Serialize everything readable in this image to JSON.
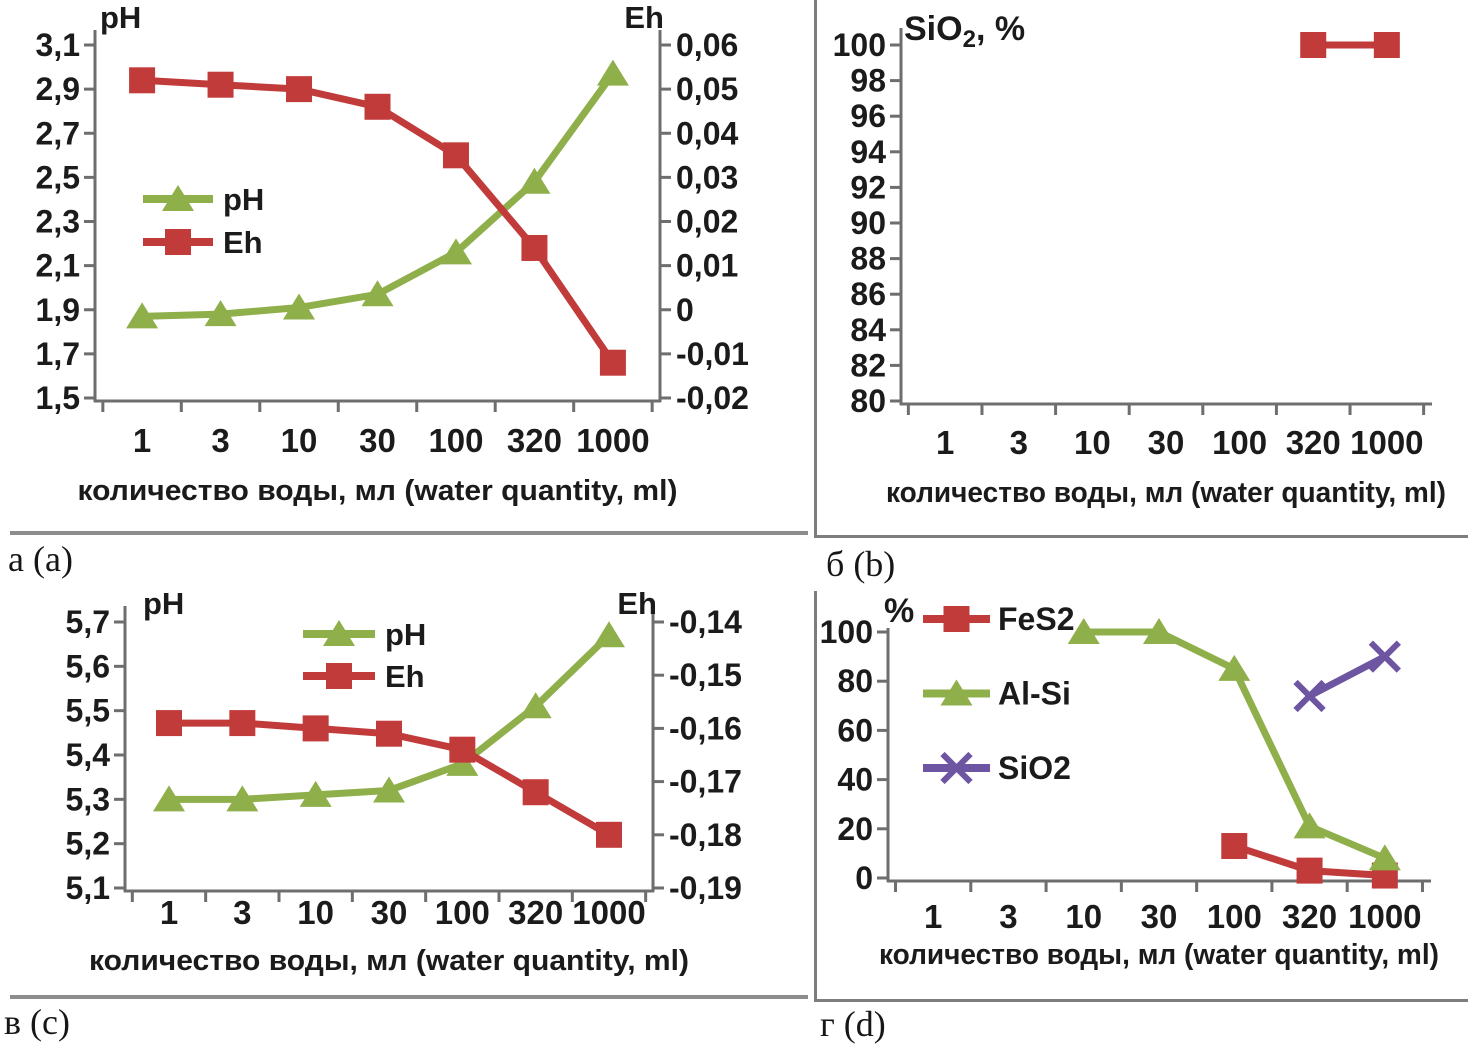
{
  "colors": {
    "green": "#8FAF4B",
    "red": "#C23B3B",
    "purple": "#6D55A1",
    "axis": "#6E6E6E",
    "text": "#1B1B1B",
    "divider": "#8D8D8D"
  },
  "x_axis": {
    "label": "количество воды, мл (water quantity, ml)",
    "categories": [
      "1",
      "3",
      "10",
      "30",
      "100",
      "320",
      "1000"
    ]
  },
  "panels": [
    {
      "id": "a",
      "caption": "а (a)"
    },
    {
      "id": "b",
      "caption": "б (b)"
    },
    {
      "id": "c",
      "caption": "в (c)"
    },
    {
      "id": "d",
      "caption": "г (d)"
    }
  ],
  "chart_data": [
    {
      "panel": "a",
      "type": "line",
      "categories": [
        "1",
        "3",
        "10",
        "30",
        "100",
        "320",
        "1000"
      ],
      "xlabel": "количество воды, мл (water quantity, ml)",
      "grid": false,
      "axes": {
        "left": {
          "title": "pH",
          "min": 1.5,
          "max": 3.1,
          "tick_labels": [
            "3,1",
            "2,9",
            "2,7",
            "2,5",
            "2,3",
            "2,1",
            "1,9",
            "1,7",
            "1,5"
          ]
        },
        "right": {
          "title": "Eh",
          "min": -0.02,
          "max": 0.06,
          "tick_labels": [
            "0,06",
            "0,05",
            "0,04",
            "0,03",
            "0,02",
            "0,01",
            "0",
            "-0,01",
            "-0,02"
          ]
        }
      },
      "series": [
        {
          "name": "pH",
          "axis": "left",
          "color": "green",
          "marker": "triangle",
          "x": [
            "1",
            "3",
            "10",
            "30",
            "100",
            "320",
            "1000"
          ],
          "values": [
            1.87,
            1.88,
            1.91,
            1.97,
            2.16,
            2.48,
            2.97
          ]
        },
        {
          "name": "Eh",
          "axis": "right",
          "color": "red",
          "marker": "square",
          "x": [
            "1",
            "3",
            "10",
            "30",
            "100",
            "320",
            "1000"
          ],
          "values": [
            0.052,
            0.051,
            0.05,
            0.046,
            0.035,
            0.014,
            -0.012
          ]
        }
      ],
      "legend": {
        "position": "inside-left",
        "entries": [
          "pH",
          "Eh"
        ]
      }
    },
    {
      "panel": "b",
      "type": "line",
      "title": {
        "text": "SiO",
        "sub": "2",
        "suffix": ", %"
      },
      "categories": [
        "1",
        "3",
        "10",
        "30",
        "100",
        "320",
        "1000"
      ],
      "xlabel": "количество воды, мл (water quantity, ml)",
      "grid": false,
      "axes": {
        "left": {
          "title": "",
          "min": 80,
          "max": 100,
          "tick_labels": [
            "100",
            "98",
            "96",
            "94",
            "92",
            "90",
            "88",
            "86",
            "84",
            "82",
            "80"
          ]
        }
      },
      "series": [
        {
          "name": "SiO2",
          "axis": "left",
          "color": "red",
          "marker": "square",
          "x": [
            "320",
            "1000"
          ],
          "values": [
            100,
            100
          ]
        }
      ],
      "legend": null
    },
    {
      "panel": "c",
      "type": "line",
      "categories": [
        "1",
        "3",
        "10",
        "30",
        "100",
        "320",
        "1000"
      ],
      "xlabel": "количество воды, мл (water quantity, ml)",
      "grid": false,
      "axes": {
        "left": {
          "title": "pH",
          "min": 5.1,
          "max": 5.7,
          "tick_labels": [
            "5,7",
            "5,6",
            "5,5",
            "5,4",
            "5,3",
            "5,2",
            "5,1"
          ]
        },
        "right": {
          "title": "Eh",
          "min": -0.19,
          "max": -0.14,
          "tick_labels": [
            "-0,14",
            "-0,15",
            "-0,16",
            "-0,17",
            "-0,18",
            "-0,19"
          ]
        }
      },
      "series": [
        {
          "name": "pH",
          "axis": "left",
          "color": "green",
          "marker": "triangle",
          "x": [
            "1",
            "3",
            "10",
            "30",
            "100",
            "320",
            "1000"
          ],
          "values": [
            5.3,
            5.3,
            5.31,
            5.32,
            5.38,
            5.51,
            5.67
          ]
        },
        {
          "name": "Eh",
          "axis": "right",
          "color": "red",
          "marker": "square",
          "x": [
            "1",
            "3",
            "10",
            "30",
            "100",
            "320",
            "1000"
          ],
          "values": [
            -0.159,
            -0.159,
            -0.16,
            -0.161,
            -0.164,
            -0.172,
            -0.18
          ]
        }
      ],
      "legend": {
        "position": "inside-top",
        "entries": [
          "pH",
          "Eh"
        ]
      }
    },
    {
      "panel": "d",
      "type": "line",
      "title": "%",
      "categories": [
        "1",
        "3",
        "10",
        "30",
        "100",
        "320",
        "1000"
      ],
      "xlabel": "количество воды, мл (water quantity, ml)",
      "grid": false,
      "axes": {
        "left": {
          "title": "%",
          "min": 0,
          "max": 100,
          "tick_labels": [
            "100",
            "80",
            "60",
            "40",
            "20",
            "0"
          ]
        }
      },
      "series": [
        {
          "name": "FeS2",
          "axis": "left",
          "color": "red",
          "marker": "square",
          "x": [
            "100",
            "320",
            "1000"
          ],
          "values": [
            13,
            3,
            1
          ]
        },
        {
          "name": "Al-Si",
          "axis": "left",
          "color": "green",
          "marker": "triangle",
          "x": [
            "10",
            "30",
            "100",
            "320",
            "1000"
          ],
          "values": [
            100,
            100,
            85,
            21,
            8
          ]
        },
        {
          "name": "SiO2",
          "axis": "left",
          "color": "purple",
          "marker": "x",
          "x": [
            "320",
            "1000"
          ],
          "values": [
            74,
            90
          ]
        }
      ],
      "legend": {
        "position": "inside-left",
        "entries": [
          "FeS2",
          "Al-Si",
          "SiO2"
        ]
      }
    }
  ]
}
